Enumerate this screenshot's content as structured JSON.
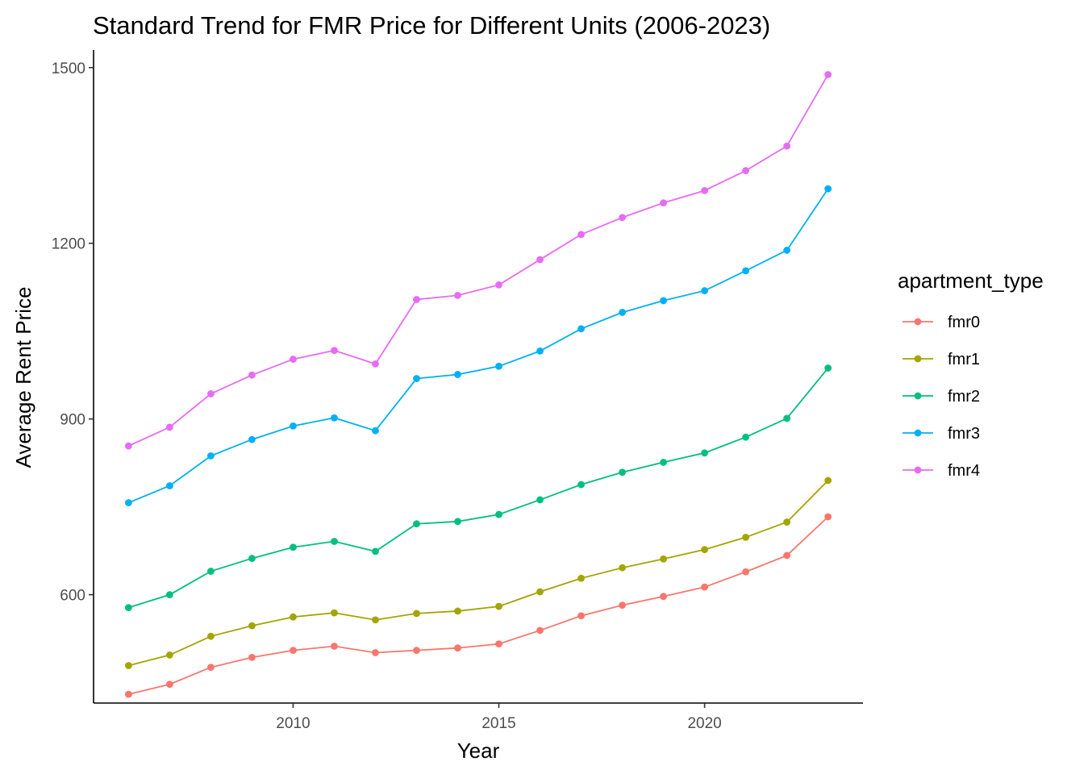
{
  "chart_data": {
    "type": "line",
    "title": "Standard Trend for FMR Price for Different Units (2006-2023)",
    "xlabel": "Year",
    "ylabel": "Average Rent Price",
    "xlim": [
      2005.15,
      2023.85
    ],
    "ylim": [
      415,
      1530
    ],
    "x_ticks": [
      2010,
      2015,
      2020
    ],
    "y_ticks": [
      600,
      900,
      1200,
      1500
    ],
    "grid": false,
    "legend": {
      "title": "apartment_type",
      "placement": "right"
    },
    "x": [
      2006,
      2007,
      2008,
      2009,
      2010,
      2011,
      2012,
      2013,
      2014,
      2015,
      2016,
      2017,
      2018,
      2019,
      2020,
      2021,
      2022,
      2023
    ],
    "series": [
      {
        "name": "fmr0",
        "color": "#F8766D",
        "values": [
          430,
          447,
          476,
          493,
          505,
          512,
          501,
          505,
          509,
          516,
          539,
          564,
          582,
          597,
          613,
          639,
          667,
          733
        ]
      },
      {
        "name": "fmr1",
        "color": "#A3A500",
        "values": [
          479,
          497,
          529,
          547,
          562,
          569,
          557,
          568,
          572,
          580,
          605,
          628,
          646,
          661,
          677,
          698,
          724,
          795
        ]
      },
      {
        "name": "fmr2",
        "color": "#00BF7D",
        "values": [
          578,
          600,
          640,
          662,
          681,
          691,
          674,
          721,
          725,
          737,
          762,
          788,
          809,
          826,
          842,
          869,
          901,
          987
        ]
      },
      {
        "name": "fmr3",
        "color": "#00B0F6",
        "values": [
          757,
          786,
          837,
          865,
          888,
          902,
          880,
          969,
          976,
          990,
          1016,
          1054,
          1082,
          1102,
          1119,
          1153,
          1188,
          1293
        ]
      },
      {
        "name": "fmr4",
        "color": "#E76BF3",
        "values": [
          854,
          886,
          943,
          975,
          1002,
          1017,
          994,
          1104,
          1111,
          1129,
          1172,
          1215,
          1244,
          1269,
          1290,
          1324,
          1366,
          1488
        ]
      }
    ]
  }
}
